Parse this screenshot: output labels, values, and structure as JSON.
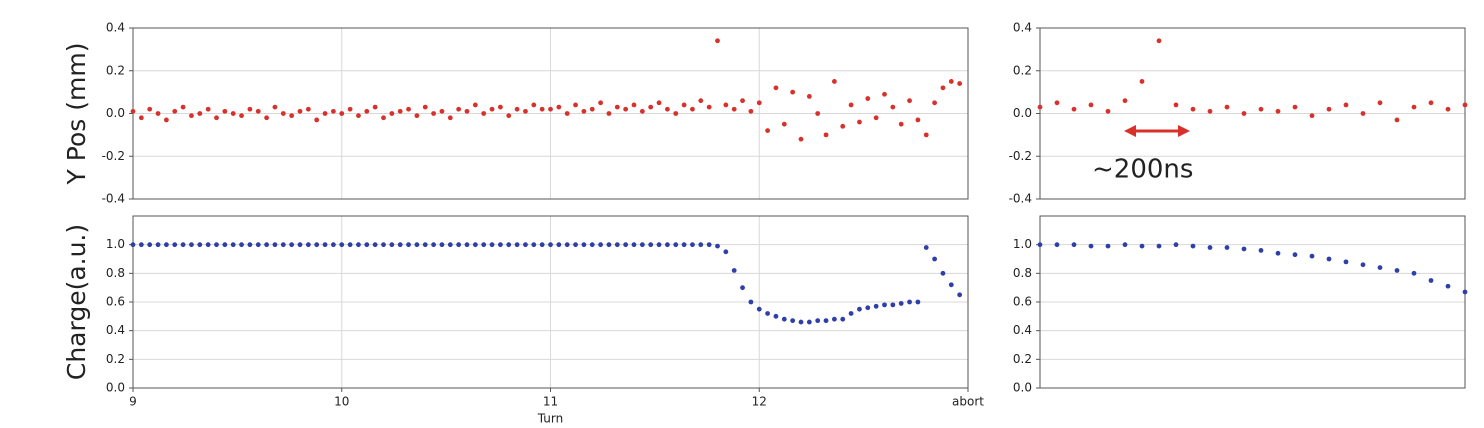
{
  "chart_data": [
    {
      "type": "scatter",
      "ylabel": "Y Pos (mm)",
      "color": "#d8312b",
      "grid": true,
      "xlim": [
        9,
        13
      ],
      "ylim": [
        -0.4,
        0.4
      ],
      "yticks": [
        -0.4,
        -0.2,
        {
          "value": 0,
          "label": "0.0"
        },
        0.2,
        0.4
      ],
      "x": [
        9.0,
        9.04,
        9.08,
        9.12,
        9.16,
        9.2,
        9.24,
        9.28,
        9.32,
        9.36,
        9.4,
        9.44,
        9.48,
        9.52,
        9.56,
        9.6,
        9.64,
        9.68,
        9.72,
        9.76,
        9.8,
        9.84,
        9.88,
        9.92,
        9.96,
        10.0,
        10.04,
        10.08,
        10.12,
        10.16,
        10.2,
        10.24,
        10.28,
        10.32,
        10.36,
        10.4,
        10.44,
        10.48,
        10.52,
        10.56,
        10.6,
        10.64,
        10.68,
        10.72,
        10.76,
        10.8,
        10.84,
        10.88,
        10.92,
        10.96,
        11.0,
        11.04,
        11.08,
        11.12,
        11.16,
        11.2,
        11.24,
        11.28,
        11.32,
        11.36,
        11.4,
        11.44,
        11.48,
        11.52,
        11.56,
        11.6,
        11.64,
        11.68,
        11.72,
        11.76,
        11.8,
        11.84,
        11.88,
        11.92,
        11.96,
        12.0,
        12.04,
        12.08,
        12.12,
        12.16,
        12.2,
        12.24,
        12.28,
        12.32,
        12.36,
        12.4,
        12.44,
        12.48,
        12.52,
        12.56,
        12.6,
        12.64,
        12.68,
        12.72,
        12.76,
        12.8,
        12.84,
        12.88,
        12.92,
        12.96
      ],
      "values": [
        0.01,
        -0.02,
        0.02,
        0.0,
        -0.03,
        0.01,
        0.03,
        -0.01,
        0.0,
        0.02,
        -0.02,
        0.01,
        0.0,
        -0.01,
        0.02,
        0.01,
        -0.02,
        0.03,
        0.0,
        -0.01,
        0.01,
        0.02,
        -0.03,
        0.0,
        0.01,
        0.0,
        0.02,
        -0.01,
        0.01,
        0.03,
        -0.02,
        0.0,
        0.01,
        0.02,
        -0.01,
        0.03,
        0.0,
        0.01,
        -0.02,
        0.02,
        0.01,
        0.04,
        0.0,
        0.02,
        0.03,
        -0.01,
        0.02,
        0.01,
        0.04,
        0.02,
        0.02,
        0.03,
        0.0,
        0.04,
        0.01,
        0.02,
        0.05,
        0.0,
        0.03,
        0.02,
        0.04,
        0.01,
        0.03,
        0.05,
        0.02,
        0.0,
        0.04,
        0.02,
        0.06,
        0.03,
        0.34,
        0.04,
        0.02,
        0.06,
        0.01,
        0.05,
        -0.08,
        0.12,
        -0.05,
        0.1,
        -0.12,
        0.08,
        0.0,
        -0.1,
        0.15,
        -0.06,
        0.04,
        -0.04,
        0.07,
        -0.02,
        0.09,
        0.03,
        -0.05,
        0.06,
        -0.03,
        -0.1,
        0.05,
        0.12,
        0.15,
        0.14
      ]
    },
    {
      "type": "scatter",
      "ylabel": "Charge(a.u.)",
      "xlabel": "Turn",
      "color": "#2f3fa8",
      "grid": true,
      "xlim": [
        9,
        13
      ],
      "ylim": [
        0,
        1.2
      ],
      "xticks": [
        9,
        10,
        11,
        12,
        {
          "value": 13,
          "label": "abort"
        }
      ],
      "yticks": [
        {
          "value": 0,
          "label": "0.0"
        },
        0.2,
        0.4,
        0.6,
        0.8,
        {
          "value": 1,
          "label": "1.0"
        }
      ],
      "x": [
        9.0,
        9.04,
        9.08,
        9.12,
        9.16,
        9.2,
        9.24,
        9.28,
        9.32,
        9.36,
        9.4,
        9.44,
        9.48,
        9.52,
        9.56,
        9.6,
        9.64,
        9.68,
        9.72,
        9.76,
        9.8,
        9.84,
        9.88,
        9.92,
        9.96,
        10.0,
        10.04,
        10.08,
        10.12,
        10.16,
        10.2,
        10.24,
        10.28,
        10.32,
        10.36,
        10.4,
        10.44,
        10.48,
        10.52,
        10.56,
        10.6,
        10.64,
        10.68,
        10.72,
        10.76,
        10.8,
        10.84,
        10.88,
        10.92,
        10.96,
        11.0,
        11.04,
        11.08,
        11.12,
        11.16,
        11.2,
        11.24,
        11.28,
        11.32,
        11.36,
        11.4,
        11.44,
        11.48,
        11.52,
        11.56,
        11.6,
        11.64,
        11.68,
        11.72,
        11.76,
        11.8,
        11.84,
        11.88,
        11.92,
        11.96,
        12.0,
        12.04,
        12.08,
        12.12,
        12.16,
        12.2,
        12.24,
        12.28,
        12.32,
        12.36,
        12.4,
        12.44,
        12.48,
        12.52,
        12.56,
        12.6,
        12.64,
        12.68,
        12.72,
        12.76,
        12.8,
        12.84,
        12.88,
        12.92,
        12.96
      ],
      "values": [
        1,
        1,
        1,
        1,
        1,
        1,
        1,
        1,
        1,
        1,
        1,
        1,
        1,
        1,
        1,
        1,
        1,
        1,
        1,
        1,
        1,
        1,
        1,
        1,
        1,
        1,
        1,
        1,
        1,
        1,
        1,
        1,
        1,
        1,
        1,
        1,
        1,
        1,
        1,
        1,
        1,
        1,
        1,
        1,
        1,
        1,
        1,
        1,
        1,
        1,
        1,
        1,
        1,
        1,
        1,
        1,
        1,
        1,
        1,
        1,
        1,
        1,
        1,
        1,
        1,
        1,
        1,
        1,
        1,
        1,
        0.99,
        0.95,
        0.82,
        0.7,
        0.6,
        0.55,
        0.52,
        0.5,
        0.48,
        0.47,
        0.46,
        0.46,
        0.47,
        0.47,
        0.48,
        0.48,
        0.52,
        0.55,
        0.56,
        0.57,
        0.58,
        0.58,
        0.59,
        0.6,
        0.6,
        0.98,
        0.9,
        0.8,
        0.72,
        0.65
      ]
    },
    {
      "type": "scatter",
      "color": "#d8312b",
      "grid": true,
      "annotation": "~200ns",
      "xlim": [
        0,
        100
      ],
      "ylim": [
        -0.4,
        0.4
      ],
      "yticks": [
        -0.4,
        -0.2,
        {
          "value": 0,
          "label": "0.0"
        },
        0.2,
        0.4
      ],
      "x": [
        0,
        4,
        8,
        12,
        16,
        20,
        24,
        28,
        32,
        36,
        40,
        44,
        48,
        52,
        56,
        60,
        64,
        68,
        72,
        76,
        80,
        84,
        88,
        92,
        96,
        100
      ],
      "values": [
        0.03,
        0.05,
        0.02,
        0.04,
        0.01,
        0.06,
        0.15,
        0.34,
        0.04,
        0.02,
        0.01,
        0.03,
        0.0,
        0.02,
        0.01,
        0.03,
        -0.01,
        0.02,
        0.04,
        0.0,
        0.05,
        -0.03,
        0.03,
        0.05,
        0.02,
        0.04
      ]
    },
    {
      "type": "scatter",
      "color": "#2f3fa8",
      "grid": true,
      "xlim": [
        0,
        100
      ],
      "ylim": [
        0,
        1.2
      ],
      "yticks": [
        {
          "value": 0,
          "label": "0.0"
        },
        0.2,
        0.4,
        0.6,
        0.8,
        {
          "value": 1,
          "label": "1.0"
        }
      ],
      "x": [
        0,
        4,
        8,
        12,
        16,
        20,
        24,
        28,
        32,
        36,
        40,
        44,
        48,
        52,
        56,
        60,
        64,
        68,
        72,
        76,
        80,
        84,
        88,
        92,
        96,
        100
      ],
      "values": [
        1,
        1,
        1,
        0.99,
        0.99,
        1,
        0.99,
        0.99,
        1,
        0.99,
        0.98,
        0.98,
        0.97,
        0.96,
        0.94,
        0.93,
        0.92,
        0.9,
        0.88,
        0.86,
        0.84,
        0.82,
        0.8,
        0.75,
        0.71,
        0.67
      ]
    }
  ]
}
